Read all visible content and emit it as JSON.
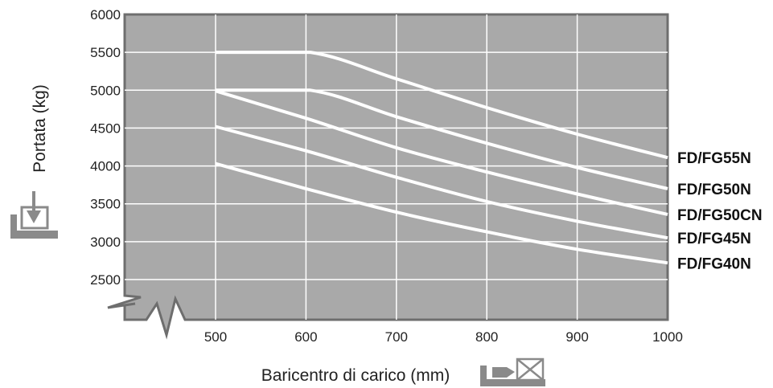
{
  "chart_data": {
    "type": "line",
    "xlabel": "Baricentro di carico (mm)",
    "ylabel": "Portata (kg)",
    "xlim": [
      500,
      1000
    ],
    "ylim": [
      2500,
      6000
    ],
    "x_ticks": [
      "500",
      "600",
      "700",
      "800",
      "900",
      "1000"
    ],
    "y_ticks": [
      "2500",
      "3000",
      "3500",
      "4000",
      "4500",
      "5000",
      "5500",
      "6000"
    ],
    "grid": true,
    "legend": "right, labels at line ends",
    "colors": {
      "plot_bg": "#a9a9a9",
      "grid": "#ffffff",
      "line": "#ffffff",
      "frame": "#6e6e6e",
      "icon": "#8a8a8a"
    },
    "series": [
      {
        "name": "FD/FG55N",
        "points": [
          [
            500,
            5500
          ],
          [
            605,
            5500
          ],
          [
            700,
            5150
          ],
          [
            800,
            4770
          ],
          [
            900,
            4420
          ],
          [
            1000,
            4110
          ]
        ]
      },
      {
        "name": "FD/FG50N",
        "points": [
          [
            500,
            5000
          ],
          [
            605,
            5000
          ],
          [
            700,
            4650
          ],
          [
            800,
            4300
          ],
          [
            900,
            3980
          ],
          [
            1000,
            3700
          ]
        ]
      },
      {
        "name": "FD/FG50CN",
        "points": [
          [
            500,
            4990
          ],
          [
            600,
            4630
          ],
          [
            700,
            4240
          ],
          [
            800,
            3920
          ],
          [
            900,
            3630
          ],
          [
            1000,
            3360
          ]
        ]
      },
      {
        "name": "FD/FG45N",
        "points": [
          [
            500,
            4520
          ],
          [
            600,
            4200
          ],
          [
            700,
            3850
          ],
          [
            800,
            3530
          ],
          [
            900,
            3270
          ],
          [
            1000,
            3050
          ]
        ]
      },
      {
        "name": "FD/FG40N",
        "points": [
          [
            500,
            4030
          ],
          [
            600,
            3700
          ],
          [
            700,
            3390
          ],
          [
            800,
            3130
          ],
          [
            900,
            2900
          ],
          [
            1000,
            2720
          ]
        ]
      }
    ]
  }
}
